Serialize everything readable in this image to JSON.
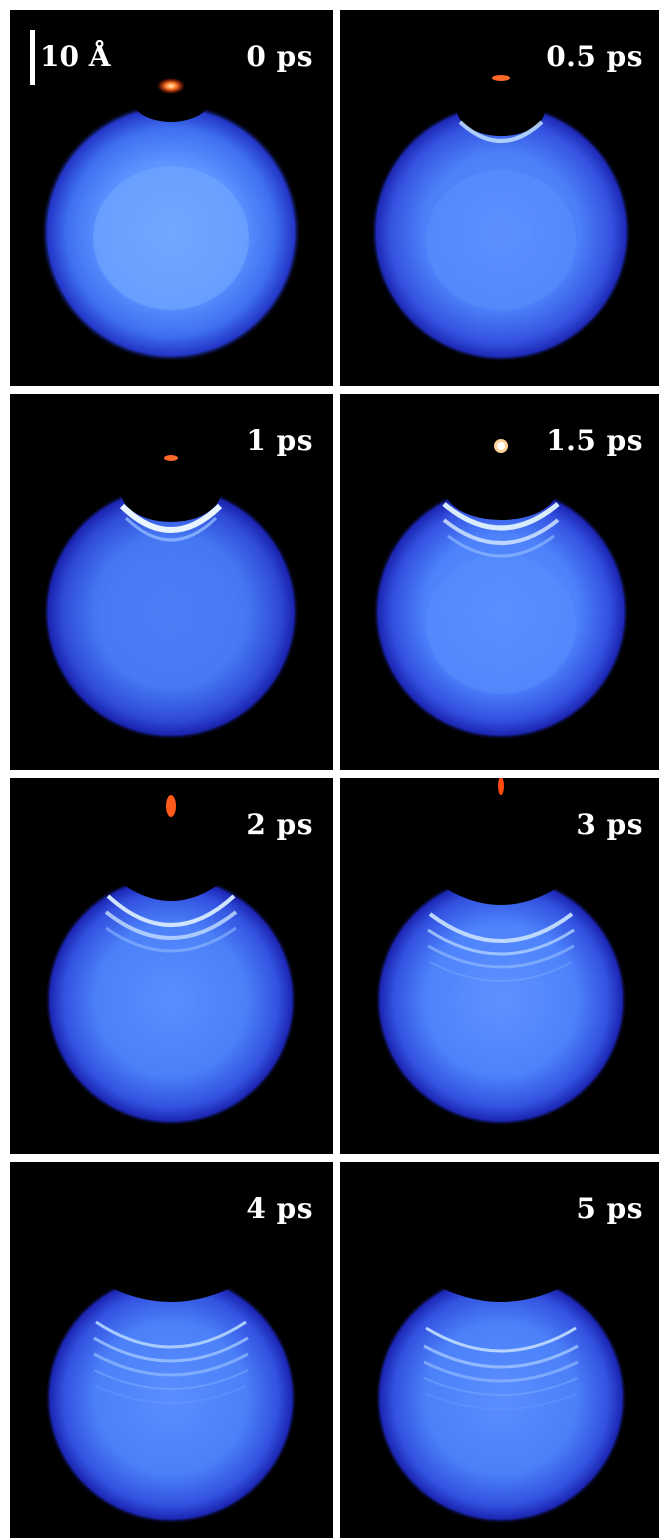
{
  "scale_bar": {
    "label": "10 Å"
  },
  "panels": [
    {
      "time": "0 ps"
    },
    {
      "time": "0.5 ps"
    },
    {
      "time": "1 ps"
    },
    {
      "time": "1.5 ps"
    },
    {
      "time": "2 ps"
    },
    {
      "time": "3 ps"
    },
    {
      "time": "4 ps"
    },
    {
      "time": "5 ps"
    }
  ],
  "colors": {
    "background": "#000000",
    "droplet_core": "#5a8fff",
    "droplet_edge": "#2a3fd0",
    "projectile": "#ff5a1a"
  }
}
